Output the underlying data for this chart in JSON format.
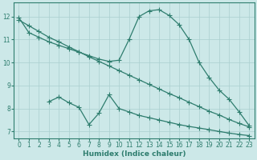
{
  "title": "",
  "xlabel": "Humidex (Indice chaleur)",
  "ylabel": "",
  "bg_color": "#cce8e8",
  "line_color": "#2e7d6e",
  "grid_color": "#aacfcf",
  "xlim": [
    -0.5,
    23.5
  ],
  "ylim": [
    6.7,
    12.6
  ],
  "yticks": [
    7,
    8,
    9,
    10,
    11,
    12
  ],
  "xticks": [
    0,
    1,
    2,
    3,
    4,
    5,
    6,
    7,
    8,
    9,
    10,
    11,
    12,
    13,
    14,
    15,
    16,
    17,
    18,
    19,
    20,
    21,
    22,
    23
  ],
  "line1_x": [
    0,
    1,
    2,
    3,
    4,
    5,
    6,
    7,
    8,
    9,
    10,
    11,
    12,
    13,
    14,
    15,
    16,
    17,
    18,
    19,
    20,
    21,
    22,
    23
  ],
  "line1_y": [
    11.95,
    11.3,
    11.1,
    10.9,
    10.75,
    10.6,
    10.45,
    10.3,
    10.15,
    10.05,
    10.1,
    11.0,
    12.0,
    12.25,
    12.3,
    12.05,
    11.65,
    11.0,
    10.0,
    9.35,
    8.8,
    8.4,
    7.85,
    7.25
  ],
  "line2_x": [
    0,
    1,
    2,
    3,
    4,
    5,
    6,
    7,
    8,
    9,
    10,
    11,
    12,
    13,
    14,
    15,
    16,
    17,
    18,
    19,
    20,
    21,
    22,
    23
  ],
  "line2_y": [
    11.85,
    11.6,
    11.35,
    11.1,
    10.9,
    10.68,
    10.47,
    10.25,
    10.05,
    9.85,
    9.65,
    9.45,
    9.25,
    9.05,
    8.85,
    8.65,
    8.47,
    8.27,
    8.08,
    7.88,
    7.72,
    7.52,
    7.35,
    7.2
  ],
  "line3_x": [
    3,
    4,
    5,
    6,
    7,
    8,
    9,
    10,
    11,
    12,
    13,
    14,
    15,
    16,
    17,
    18,
    19,
    20,
    21,
    22,
    23
  ],
  "line3_y": [
    8.3,
    8.5,
    8.25,
    8.05,
    7.3,
    7.8,
    8.6,
    8.0,
    7.85,
    7.7,
    7.6,
    7.5,
    7.4,
    7.3,
    7.22,
    7.15,
    7.08,
    7.0,
    6.93,
    6.87,
    6.82
  ],
  "marker_size": 2.5,
  "line_width": 0.9,
  "tick_fontsize": 5.5,
  "label_fontsize": 6.5
}
